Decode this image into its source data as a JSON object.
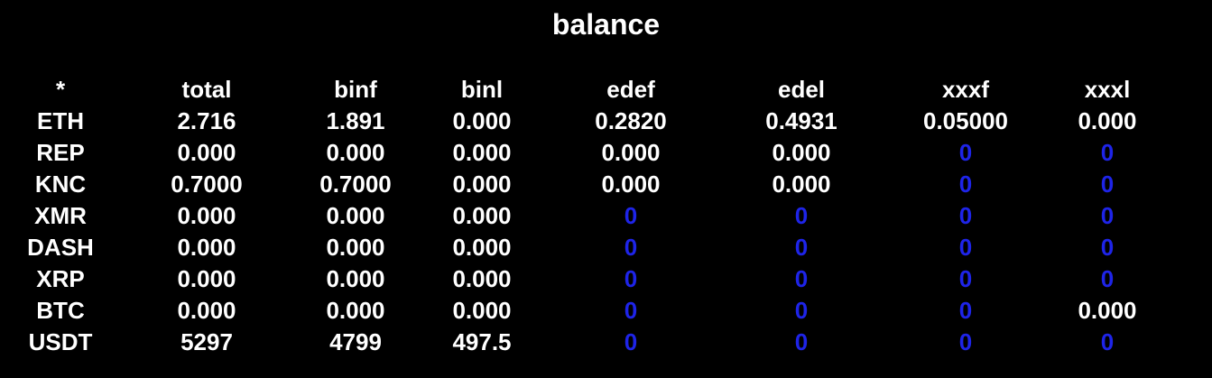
{
  "title": "balance",
  "colors": {
    "background": "#000000",
    "text": "#ffffff",
    "empty_value": "#1e24e8"
  },
  "table": {
    "columns": [
      "*",
      "total",
      "binf",
      "binl",
      "edef",
      "edel",
      "xxxf",
      "xxxl"
    ],
    "rows": [
      [
        "ETH",
        "2.716",
        "1.891",
        "0.000",
        "0.2820",
        "0.4931",
        "0.05000",
        "0.000"
      ],
      [
        "REP",
        "0.000",
        "0.000",
        "0.000",
        "0.000",
        "0.000",
        "0",
        "0"
      ],
      [
        "KNC",
        "0.7000",
        "0.7000",
        "0.000",
        "0.000",
        "0.000",
        "0",
        "0"
      ],
      [
        "XMR",
        "0.000",
        "0.000",
        "0.000",
        "0",
        "0",
        "0",
        "0"
      ],
      [
        "DASH",
        "0.000",
        "0.000",
        "0.000",
        "0",
        "0",
        "0",
        "0"
      ],
      [
        "XRP",
        "0.000",
        "0.000",
        "0.000",
        "0",
        "0",
        "0",
        "0"
      ],
      [
        "BTC",
        "0.000",
        "0.000",
        "0.000",
        "0",
        "0",
        "0",
        "0.000"
      ],
      [
        "USDT",
        "5297",
        "4799",
        "497.5",
        "0",
        "0",
        "0",
        "0"
      ]
    ]
  }
}
